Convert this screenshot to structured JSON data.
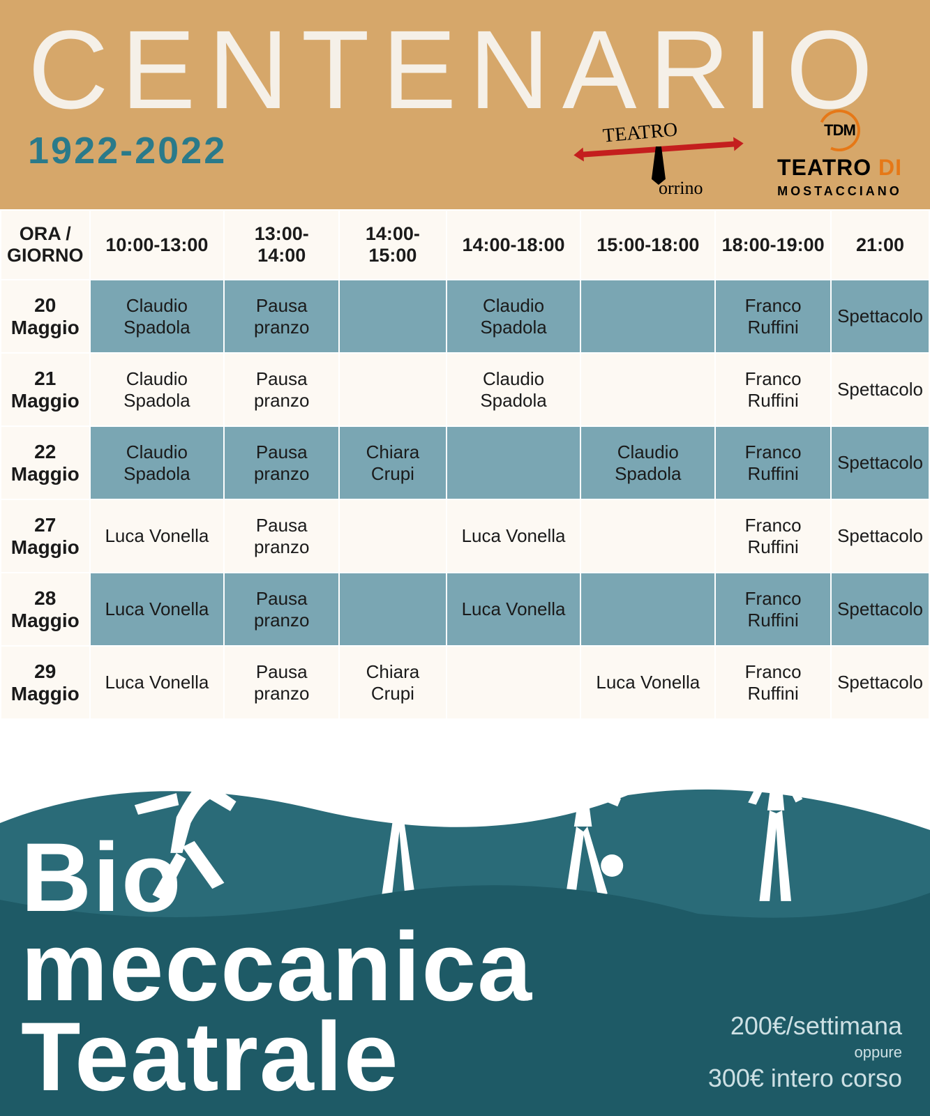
{
  "header": {
    "title": "CENTENARIO",
    "years": "1922-2022",
    "background_color": "#d6a76a",
    "title_color": "#f5f0e8",
    "years_color": "#2a7a8a",
    "logo_torrino": {
      "line1": "TEATRO",
      "line2": "orrino"
    },
    "logo_tdm": {
      "letters": "TDM",
      "line1a": "TEATRO",
      "line1b": " DI",
      "line2": "MOSTACCIANO"
    }
  },
  "schedule": {
    "header_bg": "#fdf9f3",
    "row_a_bg": "#7aa6b3",
    "row_b_bg": "#fdf9f3",
    "columns": [
      "ORA / GIORNO",
      "10:00-13:00",
      "13:00-14:00",
      "14:00-15:00",
      "14:00-18:00",
      "15:00-18:00",
      "18:00-19:00",
      "21:00"
    ],
    "rows": [
      {
        "day": "20 Maggio",
        "cells": [
          "Claudio Spadola",
          "Pausa pranzo",
          "",
          "Claudio Spadola",
          "",
          "Franco Ruffini",
          "Spettacolo"
        ]
      },
      {
        "day": "21 Maggio",
        "cells": [
          "Claudio Spadola",
          "Pausa pranzo",
          "",
          "Claudio Spadola",
          "",
          "Franco Ruffini",
          "Spettacolo"
        ]
      },
      {
        "day": "22 Maggio",
        "cells": [
          "Claudio Spadola",
          "Pausa pranzo",
          "Chiara Crupi",
          "",
          "Claudio Spadola",
          "Franco Ruffini",
          "Spettacolo"
        ]
      },
      {
        "day": "27 Maggio",
        "cells": [
          "Luca Vonella",
          "Pausa pranzo",
          "",
          "Luca Vonella",
          "",
          "Franco Ruffini",
          "Spettacolo"
        ]
      },
      {
        "day": "28 Maggio",
        "cells": [
          "Luca Vonella",
          "Pausa pranzo",
          "",
          "Luca Vonella",
          "",
          "Franco Ruffini",
          "Spettacolo"
        ]
      },
      {
        "day": "29 Maggio",
        "cells": [
          "Luca Vonella",
          "Pausa pranzo",
          "Chiara Crupi",
          "",
          "Luca Vonella",
          "Franco Ruffini",
          "Spettacolo"
        ]
      }
    ]
  },
  "footer": {
    "title_line1": "Bio",
    "title_line2": "meccanica",
    "title_line3": "Teatrale",
    "price_line1": "200€/settimana",
    "price_line2": "oppure",
    "price_line3": "300€ intero corso",
    "wave_back_color": "#2a6b78",
    "wave_front_color": "#1e5a66",
    "text_color": "#ffffff"
  }
}
